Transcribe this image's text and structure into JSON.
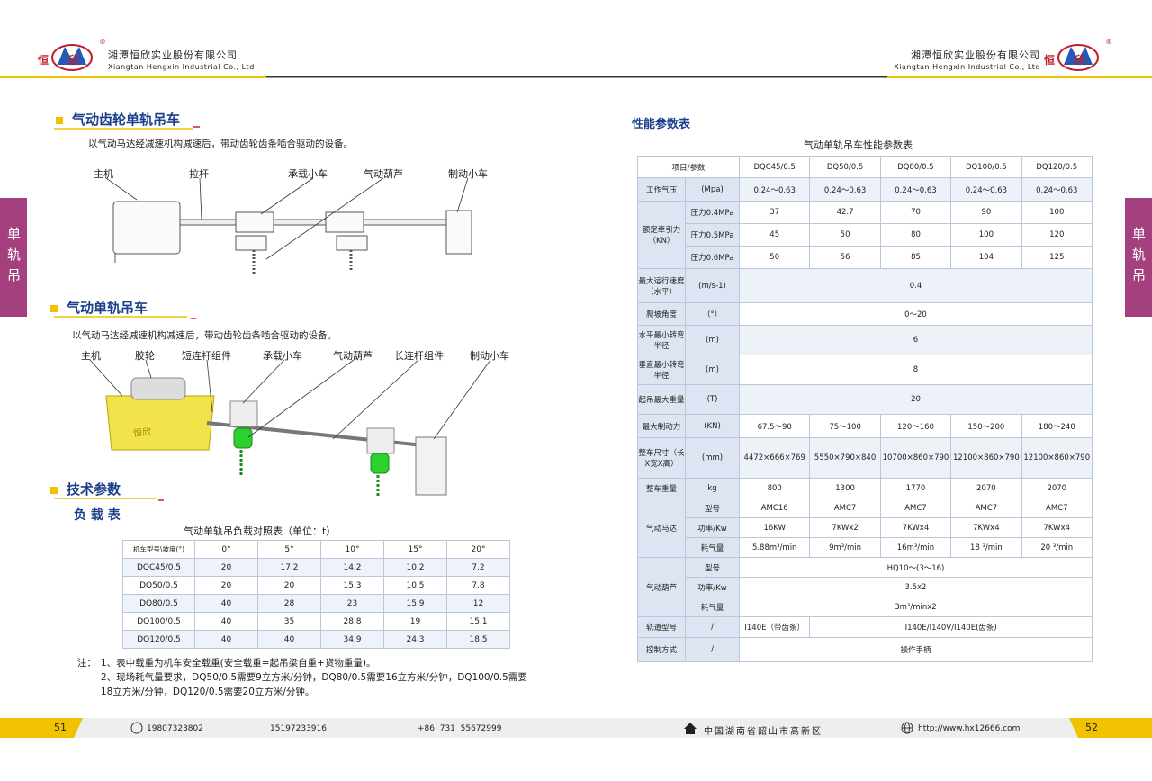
{
  "header": {
    "logo_text": "恒欣",
    "registered": "®",
    "company_cn": "湘潭恒欣实业股份有限公司",
    "company_en": "Xiangtan Hengxin Industrial Co., Ltd"
  },
  "side_tab": "单轨吊",
  "left_page": {
    "section1": {
      "title": "气动齿轮单轨吊车",
      "description": "以气动马达经减速机构减速后，带动齿轮齿条啮合驱动的设备。",
      "labels": [
        "主机",
        "拉杆",
        "承载小车",
        "气动葫芦",
        "制动小车"
      ]
    },
    "section2": {
      "title": "气动单轨吊车",
      "description": "以气动马达经减速机构减速后，带动齿轮齿条啮合驱动的设备。",
      "labels": [
        "主机",
        "胶轮",
        "短连杆组件",
        "承载小车",
        "气动葫芦",
        "长连杆组件",
        "制动小车"
      ],
      "machine_brand": "恒欣"
    },
    "section3": {
      "title": "技术参数",
      "subtitle": "负 载 表",
      "table": {
        "caption": "气动单轨吊负载对照表（单位：t）",
        "header": [
          "机车型号\\坡度(°)",
          "0°",
          "5°",
          "10°",
          "15°",
          "20°"
        ],
        "rows": [
          [
            "DQC45/0.5",
            20,
            17.2,
            14.2,
            10.2,
            7.2
          ],
          [
            "DQ50/0.5",
            20,
            20,
            15.3,
            10.5,
            7.8
          ],
          [
            "DQ80/0.5",
            40,
            28,
            23,
            15.9,
            12
          ],
          [
            "DQ100/0.5",
            40,
            35,
            28.8,
            19,
            15.1
          ],
          [
            "DQ120/0.5",
            40,
            40,
            34.9,
            24.3,
            18.5
          ]
        ]
      },
      "notes": {
        "label": "注：",
        "items": [
          "1、表中载重为机车安全载重(安全载重=起吊梁自重+货物重量)。",
          "2、现场耗气量要求，DQ50/0.5需要9立方米/分钟，DQ80/0.5需要16立方米/分钟，DQ100/0.5需要 18立方米/分钟，DQ120/0.5需要20立方米/分钟。"
        ]
      }
    }
  },
  "right_page": {
    "title": "性能参数表",
    "table": {
      "caption": "气动单轨吊车性能参数表",
      "header": [
        "项目/参数",
        "DQC45/0.5",
        "DQ50/0.5",
        "DQ80/0.5",
        "DQ100/0.5",
        "DQ120/0.5"
      ],
      "rows": [
        [
          "工作气压",
          "(Mpa)",
          "0.24～0.63",
          "0.24～0.63",
          "0.24～0.63",
          "0.24～0.63",
          "0.24～0.63"
        ],
        [
          "额定牵引力（KN）",
          "压力0.4MPa",
          "37",
          "42.7",
          "70",
          "90",
          "100"
        ],
        [
          "压力0.5MPa",
          "45",
          "50",
          "80",
          "100",
          "120"
        ],
        [
          "压力0.6MPa",
          "50",
          "56",
          "85",
          "104",
          "125"
        ],
        [
          "最大运行速度（水平）",
          "(m/s-1)",
          "0.4"
        ],
        [
          "爬坡角度",
          "（°）",
          "0～20"
        ],
        [
          "水平最小转弯半径",
          "(m)",
          "6"
        ],
        [
          "垂直最小转弯半径",
          "(m)",
          "8"
        ],
        [
          "起吊最大重量",
          "(T)",
          "20"
        ],
        [
          "最大制动力",
          "(KN)",
          "67.5～90",
          "75～100",
          "120～160",
          "150～200",
          "180～240"
        ],
        [
          "整车尺寸（长X宽X高）",
          "(mm)",
          "4472×666×769",
          "5550×790×840",
          "10700×860×790",
          "12100×860×790",
          "12100×860×790"
        ],
        [
          "整车重量",
          "kg",
          "800",
          "1300",
          "1770",
          "2070",
          "2070"
        ],
        [
          "气动马达",
          "型号",
          "AMC16",
          "AMC7",
          "AMC7",
          "AMC7",
          "AMC7"
        ],
        [
          "功率/Kw",
          "16KW",
          "7KWx2",
          "7KWx4",
          "7KWx4",
          "7KWx4"
        ],
        [
          "耗气量",
          "5.88m³/min",
          "9m³/min",
          "16m³/min",
          "18 ³/min",
          "20 ³/min"
        ],
        [
          "气动葫芦",
          "型号",
          "HQ10～(3～16)"
        ],
        [
          "功率/Kw",
          "3.5x2"
        ],
        [
          "耗气量",
          "3m³/minx2"
        ],
        [
          "轨道型号",
          "/",
          "I140E（带齿条）",
          "I140E/I140V/I140E(齿条)"
        ],
        [
          "控制方式",
          "/",
          "操作手柄"
        ]
      ]
    }
  },
  "footer": {
    "page_left": "51",
    "page_right": "52",
    "phone1": "19807323802",
    "phone2": "15197233916",
    "landline": "+86  731  55672999",
    "address": "中国湖南省韶山市高新区",
    "website": "http://www.hx12666.com"
  }
}
